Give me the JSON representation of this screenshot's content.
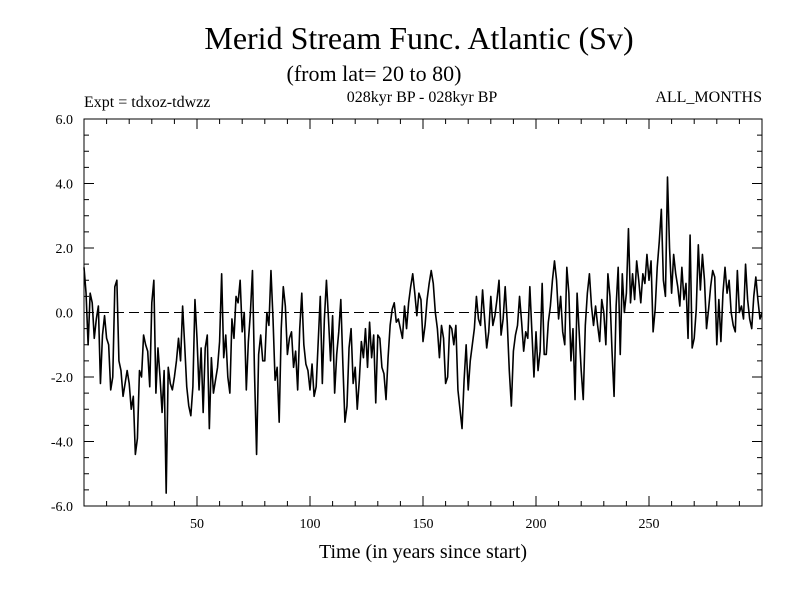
{
  "chart_data": {
    "type": "line",
    "title": "Merid Stream Func. Atlantic (Sv)",
    "subtitle": "(from lat= 20 to 80)",
    "experiment": "Expt = tdxoz-tdwzz",
    "period": "028kyr BP - 028kyr BP",
    "season": "ALL_MONTHS",
    "xlabel": "Time (in years since start)",
    "ylabel": "",
    "xlim": [
      0,
      300
    ],
    "ylim": [
      -6.0,
      6.0
    ],
    "xticks": [
      50,
      100,
      150,
      200,
      250
    ],
    "xtick_labels": [
      "50",
      "100",
      "150",
      "200",
      "250"
    ],
    "yticks": [
      -6.0,
      -4.0,
      -2.0,
      0.0,
      2.0,
      4.0,
      6.0
    ],
    "ytick_labels": [
      "-6.0",
      "-4.0",
      "-2.0",
      "0.0",
      "2.0",
      "4.0",
      "6.0"
    ],
    "zero_line": "dashed",
    "grid": false,
    "series": [
      {
        "values": [
          1.4,
          0.6,
          -1.0,
          0.6,
          0.3,
          -0.8,
          -0.2,
          0.2,
          -2.2,
          -0.7,
          -0.1,
          -0.8,
          -1.0,
          -2.4,
          -2.0,
          0.8,
          1.0,
          -1.5,
          -1.8,
          -2.6,
          -2.2,
          -1.8,
          -2.2,
          -3.0,
          -2.6,
          -4.4,
          -3.9,
          -1.8,
          -2.0,
          -0.7,
          -1.0,
          -1.2,
          -2.3,
          0.3,
          1.0,
          -2.5,
          -1.1,
          -2.0,
          -3.1,
          -1.8,
          -5.6,
          -1.7,
          -2.2,
          -2.4,
          -2.0,
          -1.5,
          -0.8,
          -1.5,
          0.2,
          -1.0,
          -2.3,
          -2.9,
          -3.2,
          -2.3,
          0.4,
          -0.8,
          -2.4,
          -1.1,
          -3.1,
          -1.1,
          -0.7,
          -3.6,
          -1.4,
          -2.5,
          -2.1,
          -1.7,
          -0.9,
          1.2,
          -1.4,
          -0.7,
          -2.0,
          -2.5,
          -0.2,
          -0.8,
          0.5,
          0.3,
          1.0,
          -0.6,
          0.0,
          -2.4,
          -0.9,
          0.0,
          1.3,
          -1.9,
          -4.4,
          -1.3,
          -0.7,
          -1.5,
          -1.5,
          0.0,
          -0.4,
          1.3,
          -0.2,
          -2.1,
          -1.7,
          -3.4,
          -0.5,
          0.8,
          0.2,
          -1.3,
          -0.8,
          -0.6,
          -1.7,
          -1.2,
          -2.4,
          -0.5,
          0.6,
          -1.0,
          -1.6,
          -1.8,
          -2.4,
          -1.6,
          -2.6,
          -2.3,
          -0.9,
          0.5,
          -2.2,
          -0.2,
          1.0,
          -0.2,
          -1.5,
          -0.1,
          -2.5,
          -1.3,
          -0.6,
          0.4,
          -1.6,
          -3.4,
          -2.9,
          -1.1,
          -0.5,
          -2.2,
          -1.7,
          -3.0,
          -2.1,
          -0.9,
          -1.4,
          -0.5,
          -1.7,
          -0.3,
          -1.4,
          -0.7,
          -2.8,
          -0.7,
          -0.8,
          -1.7,
          -1.9,
          -2.7,
          -1.4,
          -0.4,
          0.1,
          0.3,
          -0.3,
          -0.2,
          -0.5,
          -0.8,
          0.2,
          -0.5,
          0.3,
          0.8,
          1.2,
          0.6,
          -0.1,
          0.6,
          0.4,
          -0.9,
          -0.4,
          0.4,
          0.9,
          1.3,
          0.9,
          0.0,
          -0.5,
          -1.4,
          -0.4,
          -0.8,
          -2.2,
          -2.0,
          -0.4,
          -0.5,
          -1.0,
          -0.4,
          -2.4,
          -3.0,
          -3.6,
          -2.1,
          -1.0,
          -2.4,
          -1.5,
          -1.0,
          -0.5,
          0.5,
          -0.2,
          -0.4,
          0.7,
          -0.2,
          -1.1,
          -0.6,
          0.5,
          -0.4,
          -0.1,
          0.4,
          1.0,
          -0.7,
          -0.2,
          0.8,
          -0.3,
          -1.8,
          -2.9,
          -1.2,
          -0.7,
          -0.4,
          0.5,
          -0.3,
          -1.2,
          -0.6,
          -0.8,
          0.8,
          -0.6,
          -2.0,
          -0.6,
          -1.8,
          -1.2,
          0.9,
          -1.3,
          -1.3,
          -0.3,
          0.2,
          1.0,
          1.6,
          1.0,
          -0.2,
          0.5,
          -0.6,
          -1.0,
          1.4,
          0.6,
          -1.5,
          -0.5,
          -2.7,
          0.6,
          -0.6,
          -1.8,
          -2.7,
          -0.4,
          0.6,
          1.2,
          0.2,
          -0.4,
          0.2,
          -0.4,
          -0.9,
          0.4,
          0.0,
          -1.0,
          1.2,
          0.5,
          -1.2,
          -2.6,
          0.2,
          1.4,
          -1.3,
          1.2,
          0.0,
          0.6,
          2.6,
          0.3,
          1.2,
          0.4,
          1.6,
          1.0,
          0.3,
          1.2,
          0.9,
          1.8,
          1.0,
          1.6,
          -0.6,
          0.1,
          1.4,
          2.2,
          3.2,
          1.0,
          0.5,
          4.2,
          2.0,
          0.6,
          1.8,
          1.2,
          0.8,
          0.2,
          1.4,
          0.4,
          0.9,
          -0.8,
          2.4,
          -1.1,
          -0.8,
          0.1,
          2.1,
          0.7,
          1.8,
          1.0,
          -0.5,
          0.1,
          0.8,
          1.3,
          1.1,
          -1.0,
          0.4,
          -0.9,
          0.6,
          1.4,
          0.6,
          1.0,
          0.0,
          -0.4,
          -0.6,
          1.3,
          0.0,
          0.2,
          -0.2,
          1.5,
          0.4,
          -0.2,
          -0.5,
          0.5,
          1.1,
          0.4,
          -0.2,
          0.0
        ]
      }
    ]
  }
}
